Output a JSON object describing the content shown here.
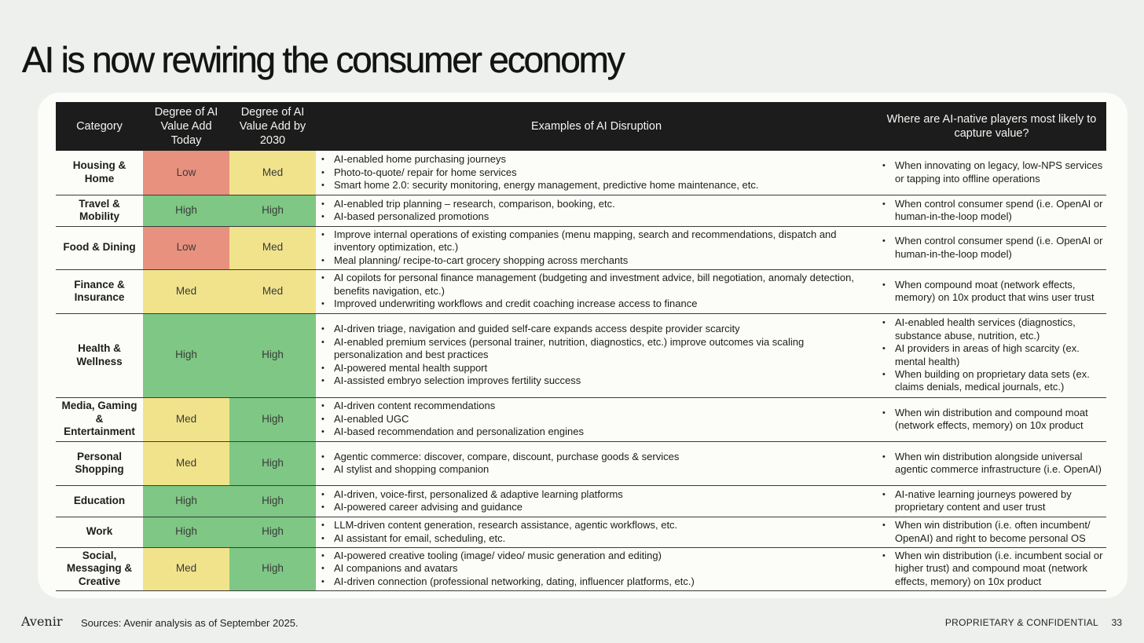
{
  "title": "AI is now rewiring the consumer economy",
  "header": {
    "category": "Category",
    "today": "Degree of AI Value Add Today",
    "by2030": "Degree of AI Value Add by 2030",
    "examples": "Examples of AI Disruption",
    "where": "Where are AI-native players most likely to capture value?"
  },
  "rows": [
    {
      "category": "Housing & Home",
      "today": "Low",
      "today_level": "low",
      "by2030": "Med",
      "by2030_level": "med",
      "examples": [
        "AI-enabled home purchasing journeys",
        "Photo-to-quote/ repair for home services",
        "Smart home 2.0: security monitoring, energy management, predictive home maintenance, etc."
      ],
      "where": [
        "When innovating on legacy, low-NPS services or tapping into offline operations"
      ]
    },
    {
      "category": "Travel & Mobility",
      "today": "High",
      "today_level": "high",
      "by2030": "High",
      "by2030_level": "high",
      "examples": [
        "AI-enabled trip planning – research, comparison, booking, etc.",
        "AI-based personalized promotions"
      ],
      "where": [
        "When control consumer spend (i.e. OpenAI or human-in-the-loop model)"
      ]
    },
    {
      "category": "Food & Dining",
      "today": "Low",
      "today_level": "low",
      "by2030": "Med",
      "by2030_level": "med",
      "examples": [
        "Improve internal operations of existing companies (menu mapping, search and recommendations, dispatch and inventory optimization, etc.)",
        "Meal planning/ recipe-to-cart grocery shopping across merchants"
      ],
      "where": [
        "When control consumer spend (i.e. OpenAI or human-in-the-loop model)"
      ]
    },
    {
      "category": "Finance & Insurance",
      "today": "Med",
      "today_level": "med",
      "by2030": "Med",
      "by2030_level": "med",
      "examples": [
        "AI copilots for personal finance management (budgeting and investment advice, bill negotiation, anomaly detection, benefits navigation, etc.)",
        "Improved underwriting workflows and credit coaching increase access to finance"
      ],
      "where": [
        "When compound moat (network effects, memory) on 10x product that wins user trust"
      ]
    },
    {
      "category": "Health & Wellness",
      "today": "High",
      "today_level": "high",
      "by2030": "High",
      "by2030_level": "high",
      "examples": [
        "AI-driven triage, navigation and guided self-care expands access despite provider scarcity",
        "AI-enabled premium services (personal trainer, nutrition, diagnostics, etc.) improve outcomes via scaling personalization and best practices",
        "AI-powered mental health support",
        "AI-assisted embryo selection improves fertility success"
      ],
      "where": [
        "AI-enabled health services (diagnostics, substance abuse, nutrition, etc.)",
        "AI providers in areas of high scarcity (ex. mental health)",
        "When building on proprietary data sets (ex. claims denials, medical journals, etc.)"
      ]
    },
    {
      "category": "Media, Gaming & Entertainment",
      "today": "Med",
      "today_level": "med",
      "by2030": "High",
      "by2030_level": "high",
      "examples": [
        "AI-driven content recommendations",
        "AI-enabled UGC",
        "AI-based recommendation and personalization engines"
      ],
      "where": [
        "When win distribution and compound moat (network effects, memory) on 10x product"
      ]
    },
    {
      "category": "Personal Shopping",
      "today": "Med",
      "today_level": "med",
      "by2030": "High",
      "by2030_level": "high",
      "examples": [
        "Agentic commerce: discover, compare, discount, purchase goods & services",
        "AI stylist and shopping companion"
      ],
      "where": [
        "When win distribution alongside universal agentic commerce infrastructure (i.e. OpenAI)"
      ]
    },
    {
      "category": "Education",
      "today": "High",
      "today_level": "high",
      "by2030": "High",
      "by2030_level": "high",
      "examples": [
        "AI-driven, voice-first, personalized & adaptive learning platforms",
        "AI-powered career advising and guidance"
      ],
      "where": [
        "AI-native learning journeys powered by proprietary content and user trust"
      ]
    },
    {
      "category": "Work",
      "today": "High",
      "today_level": "high",
      "by2030": "High",
      "by2030_level": "high",
      "examples": [
        "LLM-driven content generation, research assistance, agentic workflows, etc.",
        "AI assistant for email, scheduling, etc."
      ],
      "where": [
        "When win distribution (i.e. often incumbent/ OpenAI) and right to become personal OS"
      ]
    },
    {
      "category": "Social, Messaging & Creative",
      "today": "Med",
      "today_level": "med",
      "by2030": "High",
      "by2030_level": "high",
      "examples": [
        "AI-powered creative tooling (image/ video/ music generation and editing)",
        "AI companions and avatars",
        "AI-driven connection (professional networking, dating, influencer platforms, etc.)"
      ],
      "where": [
        "When win distribution (i.e. incumbent social or higher trust) and compound moat (network effects, memory) on 10x product"
      ]
    }
  ],
  "footer": {
    "logo": "Avenir",
    "sources": "Sources: Avenir analysis as of September 2025.",
    "confidential": "PROPRIETARY & CONFIDENTIAL",
    "page": "33"
  },
  "colors": {
    "low": "#e8917f",
    "med": "#f1e38c",
    "high": "#7ec784",
    "header_bg": "#1c1c1c"
  }
}
